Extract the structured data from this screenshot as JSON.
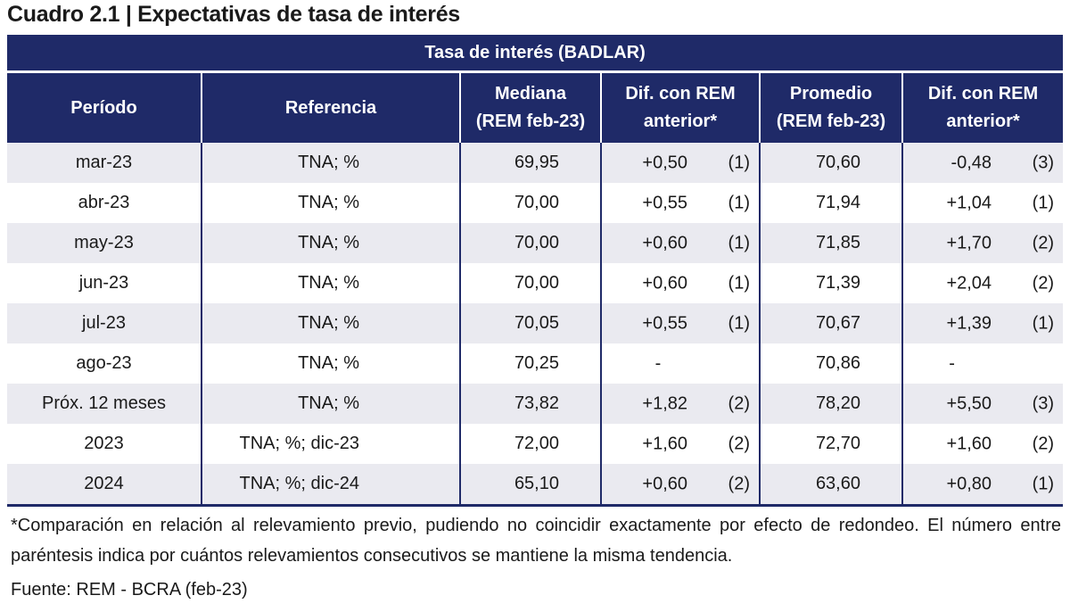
{
  "title": "Cuadro 2.1 | Expectativas de tasa de interés",
  "table": {
    "group_header": "Tasa de interés (BADLAR)",
    "columns": {
      "periodo": "Período",
      "referencia": "Referencia",
      "mediana_line1": "Mediana",
      "mediana_line2": "(REM feb-23)",
      "dif_mediana_line1": "Dif. con REM",
      "dif_mediana_line2": "anterior*",
      "promedio_line1": "Promedio",
      "promedio_line2": "(REM feb-23)",
      "dif_promedio_line1": "Dif. con REM",
      "dif_promedio_line2": "anterior*"
    },
    "rows": [
      {
        "periodo": "mar-23",
        "referencia": "TNA; %",
        "mediana": "69,95",
        "dif_mediana": "+0,50",
        "tend_mediana": "(1)",
        "promedio": "70,60",
        "dif_promedio": "-0,48",
        "tend_promedio": "(3)"
      },
      {
        "periodo": "abr-23",
        "referencia": "TNA; %",
        "mediana": "70,00",
        "dif_mediana": "+0,55",
        "tend_mediana": "(1)",
        "promedio": "71,94",
        "dif_promedio": "+1,04",
        "tend_promedio": "(1)"
      },
      {
        "periodo": "may-23",
        "referencia": "TNA; %",
        "mediana": "70,00",
        "dif_mediana": "+0,60",
        "tend_mediana": "(1)",
        "promedio": "71,85",
        "dif_promedio": "+1,70",
        "tend_promedio": "(2)"
      },
      {
        "periodo": "jun-23",
        "referencia": "TNA; %",
        "mediana": "70,00",
        "dif_mediana": "+0,60",
        "tend_mediana": "(1)",
        "promedio": "71,39",
        "dif_promedio": "+2,04",
        "tend_promedio": "(2)"
      },
      {
        "periodo": "jul-23",
        "referencia": "TNA; %",
        "mediana": "70,05",
        "dif_mediana": "+0,55",
        "tend_mediana": "(1)",
        "promedio": "70,67",
        "dif_promedio": "+1,39",
        "tend_promedio": "(1)"
      },
      {
        "periodo": "ago-23",
        "referencia": "TNA; %",
        "mediana": "70,25",
        "dif_mediana": "-",
        "tend_mediana": "",
        "promedio": "70,86",
        "dif_promedio": "-",
        "tend_promedio": ""
      },
      {
        "periodo": "Próx. 12 meses",
        "referencia": "TNA; %",
        "mediana": "73,82",
        "dif_mediana": "+1,82",
        "tend_mediana": "(2)",
        "promedio": "78,20",
        "dif_promedio": "+5,50",
        "tend_promedio": "(3)"
      },
      {
        "periodo": "2023",
        "referencia": "TNA; %; dic-23",
        "mediana": "72,00",
        "dif_mediana": "+1,60",
        "tend_mediana": "(2)",
        "promedio": "72,70",
        "dif_promedio": "+1,60",
        "tend_promedio": "(2)"
      },
      {
        "periodo": "2024",
        "referencia": "TNA; %; dic-24",
        "mediana": "65,10",
        "dif_mediana": "+0,60",
        "tend_mediana": "(2)",
        "promedio": "63,60",
        "dif_promedio": "+0,80",
        "tend_promedio": "(1)"
      }
    ]
  },
  "footnote": "*Comparación en relación al relevamiento previo, pudiendo no coincidir exactamente por efecto de redondeo. El número entre paréntesis indica por cuántos relevamientos consecutivos se mantiene la misma tendencia.",
  "source": "Fuente: REM - BCRA (feb-23)",
  "colors": {
    "header_bg": "#1f2a68",
    "header_text": "#ffffff",
    "row_stripe": "#eaeaf0"
  }
}
